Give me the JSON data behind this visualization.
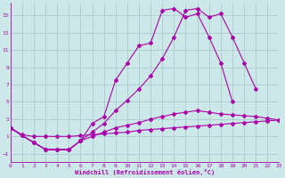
{
  "xlabel": "Windchill (Refroidissement éolien,°C)",
  "background_color": "#cce8e8",
  "grid_color": "#aacccc",
  "line_color": "#aa00aa",
  "xlim": [
    0,
    23
  ],
  "ylim": [
    -2.0,
    16.5
  ],
  "xticks": [
    0,
    1,
    2,
    3,
    4,
    5,
    6,
    7,
    8,
    9,
    10,
    11,
    12,
    13,
    14,
    15,
    16,
    17,
    18,
    19,
    20,
    21,
    22,
    23
  ],
  "yticks": [
    -1,
    1,
    3,
    5,
    7,
    9,
    11,
    13,
    15
  ],
  "series": [
    {
      "x": [
        0,
        1,
        2,
        3,
        4,
        5,
        6,
        7,
        8,
        9,
        10,
        11,
        12,
        13,
        14,
        15,
        16,
        17,
        18,
        19,
        20,
        21,
        22,
        23
      ],
      "y": [
        2.0,
        1.2,
        1.0,
        1.0,
        1.0,
        1.0,
        1.1,
        1.2,
        1.3,
        1.4,
        1.5,
        1.7,
        1.8,
        1.9,
        2.0,
        2.1,
        2.2,
        2.3,
        2.4,
        2.5,
        2.6,
        2.7,
        2.8,
        2.9
      ]
    },
    {
      "x": [
        0,
        1,
        2,
        3,
        4,
        5,
        6,
        7,
        8,
        9,
        10,
        11,
        12,
        13,
        14,
        15,
        16,
        17,
        18,
        19,
        20,
        21,
        22,
        23
      ],
      "y": [
        2.0,
        1.1,
        0.3,
        -0.5,
        -0.5,
        -0.5,
        0.5,
        1.0,
        1.5,
        2.0,
        2.3,
        2.6,
        3.0,
        3.3,
        3.6,
        3.8,
        4.0,
        3.8,
        3.6,
        3.5,
        3.4,
        3.3,
        3.1,
        2.9
      ]
    },
    {
      "x": [
        0,
        1,
        2,
        3,
        4,
        5,
        6,
        7,
        8,
        9,
        10,
        11,
        12,
        13,
        14,
        15,
        16,
        17,
        18,
        19,
        20,
        21,
        22,
        23
      ],
      "y": [
        2.0,
        1.1,
        0.3,
        -0.5,
        -0.55,
        -0.55,
        0.5,
        1.5,
        2.5,
        4.0,
        5.2,
        6.5,
        8.0,
        10.0,
        12.5,
        15.6,
        15.8,
        14.8,
        15.2,
        12.5,
        9.5,
        6.5,
        null,
        null
      ]
    },
    {
      "x": [
        0,
        1,
        2,
        3,
        4,
        5,
        6,
        7,
        8,
        9,
        10,
        11,
        12,
        13,
        14,
        15,
        16,
        17,
        18,
        19,
        20
      ],
      "y": [
        2.0,
        1.1,
        0.3,
        -0.5,
        -0.55,
        -0.55,
        0.5,
        2.5,
        3.3,
        7.5,
        9.5,
        11.5,
        11.8,
        15.6,
        15.8,
        14.8,
        15.2,
        12.5,
        9.5,
        5.0,
        null
      ]
    }
  ]
}
